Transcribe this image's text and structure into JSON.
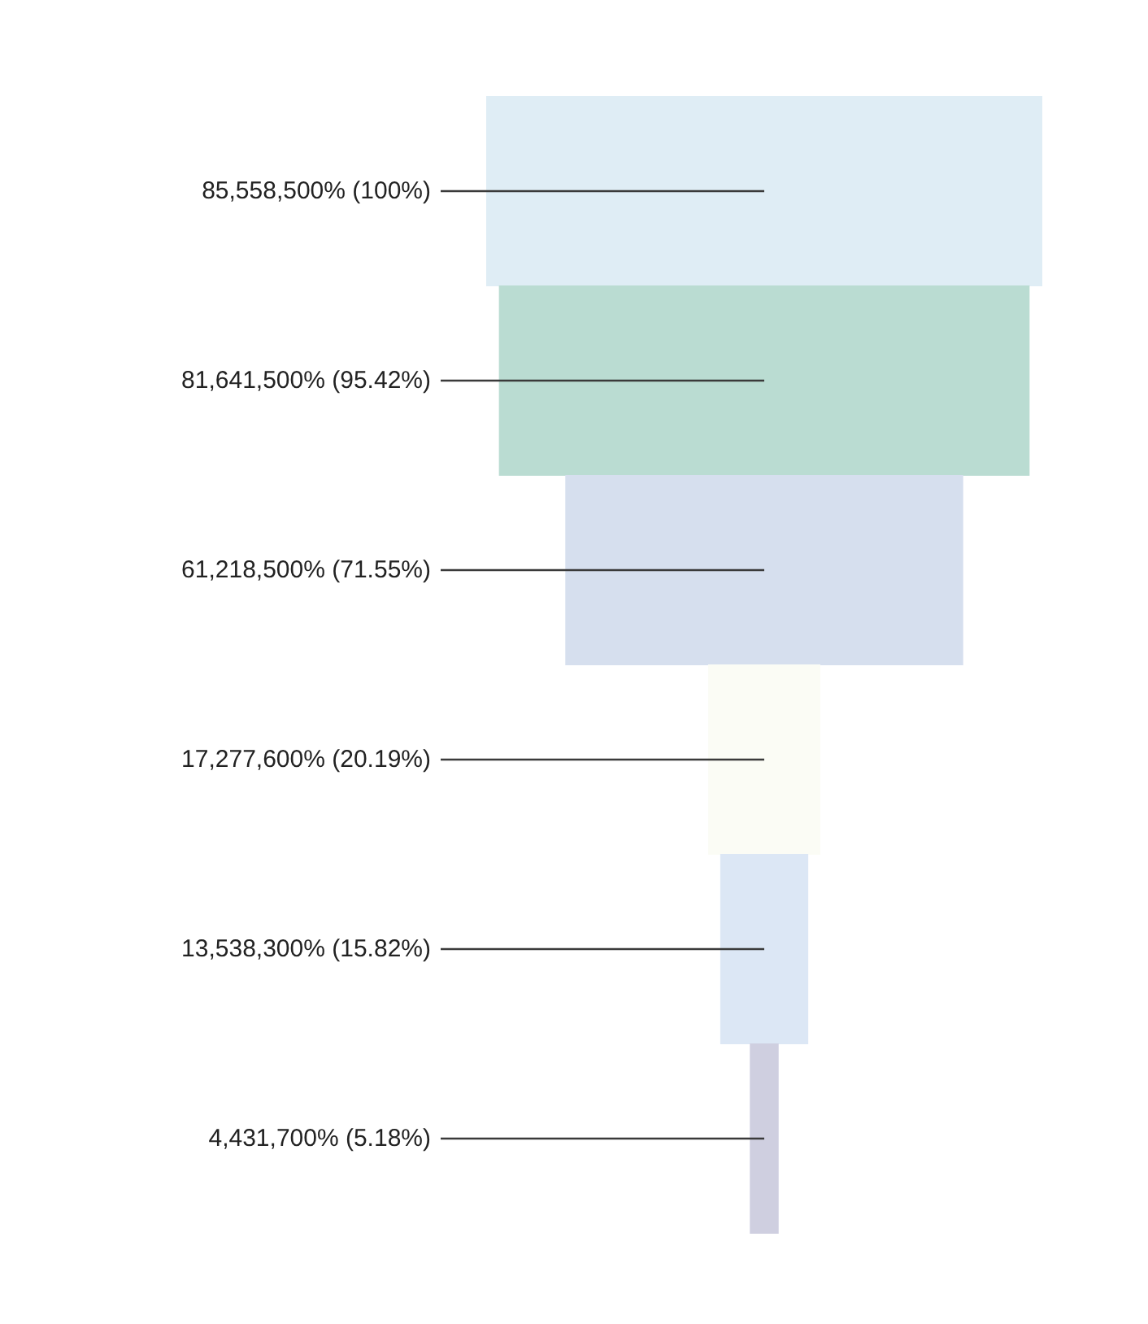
{
  "chart_data": {
    "type": "other",
    "values": [
      85558500,
      81641500,
      61218500,
      17277600,
      13538300,
      4431700
    ],
    "value_labels": [
      "85,558,500% (100%)",
      "81,641,500% (95.42%)",
      "61,218,500% (71.55%)",
      "17,277,600% (20.19%)",
      "13,538,300% (15.82%)",
      "4,431,700% (5.18%)"
    ],
    "colors": [
      "#dfedf5",
      "#badcd2",
      "#d6dfee",
      "#fbfcf5",
      "#dce7f5",
      "#cfcfe0"
    ]
  }
}
